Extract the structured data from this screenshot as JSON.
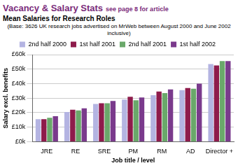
{
  "chart_data": {
    "type": "bar",
    "title": "Vacancy & Salary Stats",
    "subtitle": "Mean Salaries for Research Roles",
    "annotations": [
      "see page 8 for article",
      "(Base: 3626 UK research jobs advertised on MrWeb between August 2000 and June 2002 inclusive)"
    ],
    "x_label": "Job title / level",
    "y_label": "Salary excl. benefits",
    "categories": [
      "JRE",
      "RE",
      "SRE",
      "PM",
      "RM",
      "AD",
      "Director +"
    ],
    "series": [
      {
        "name": "2nd half 2000",
        "color": "#b4b4e2",
        "values": [
          15.5,
          20.5,
          26,
          29,
          32,
          35.5,
          53.5
        ]
      },
      {
        "name": "1st half 2001",
        "color": "#8e1b4b",
        "values": [
          15.5,
          22,
          26.5,
          31,
          34.5,
          37,
          52.5
        ]
      },
      {
        "name": "2nd half 2001",
        "color": "#6aa86a",
        "values": [
          16.5,
          21.5,
          26.5,
          28.5,
          33.5,
          36.5,
          55.5
        ]
      },
      {
        "name": "1st half 2002",
        "color": "#7a3a8c",
        "values": [
          17.5,
          23,
          28,
          30.5,
          36,
          40,
          55.5
        ]
      }
    ],
    "ylim": [
      0,
      60
    ],
    "yticks": [
      {
        "value": 0,
        "label": "£0k"
      },
      {
        "value": 10,
        "label": "£10k"
      },
      {
        "value": 20,
        "label": "£20k"
      },
      {
        "value": 30,
        "label": "£30k"
      },
      {
        "value": 40,
        "label": "£40k"
      },
      {
        "value": 50,
        "label": "£50k"
      },
      {
        "value": 60,
        "label": "£60k"
      }
    ],
    "grid": true,
    "legend": "top"
  }
}
